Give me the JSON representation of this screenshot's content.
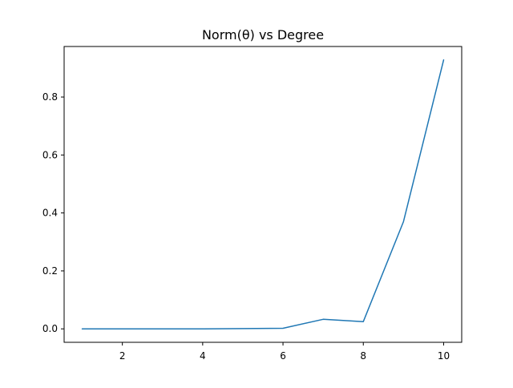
{
  "chart_data": {
    "type": "line",
    "title": "Norm(θ) vs Degree",
    "xlabel": "",
    "ylabel": "",
    "x": [
      1,
      2,
      3,
      4,
      5,
      6,
      7,
      8,
      9,
      10
    ],
    "series": [
      {
        "values": [
          0.0,
          0.0,
          0.0,
          0.0,
          0.001,
          0.002,
          0.033,
          0.025,
          0.37,
          0.928
        ],
        "color": "#1f77b4"
      }
    ],
    "xlim": [
      0.55,
      10.45
    ],
    "ylim": [
      -0.0464,
      0.9744
    ],
    "x_ticks": [
      2,
      4,
      6,
      8,
      10
    ],
    "y_ticks": [
      0.0,
      0.2,
      0.4,
      0.6,
      0.8
    ],
    "x_tick_labels": [
      "2",
      "4",
      "6",
      "8",
      "10"
    ],
    "y_tick_labels": [
      "0.0",
      "0.2",
      "0.4",
      "0.6",
      "0.8"
    ],
    "grid": false,
    "legend": "none"
  }
}
